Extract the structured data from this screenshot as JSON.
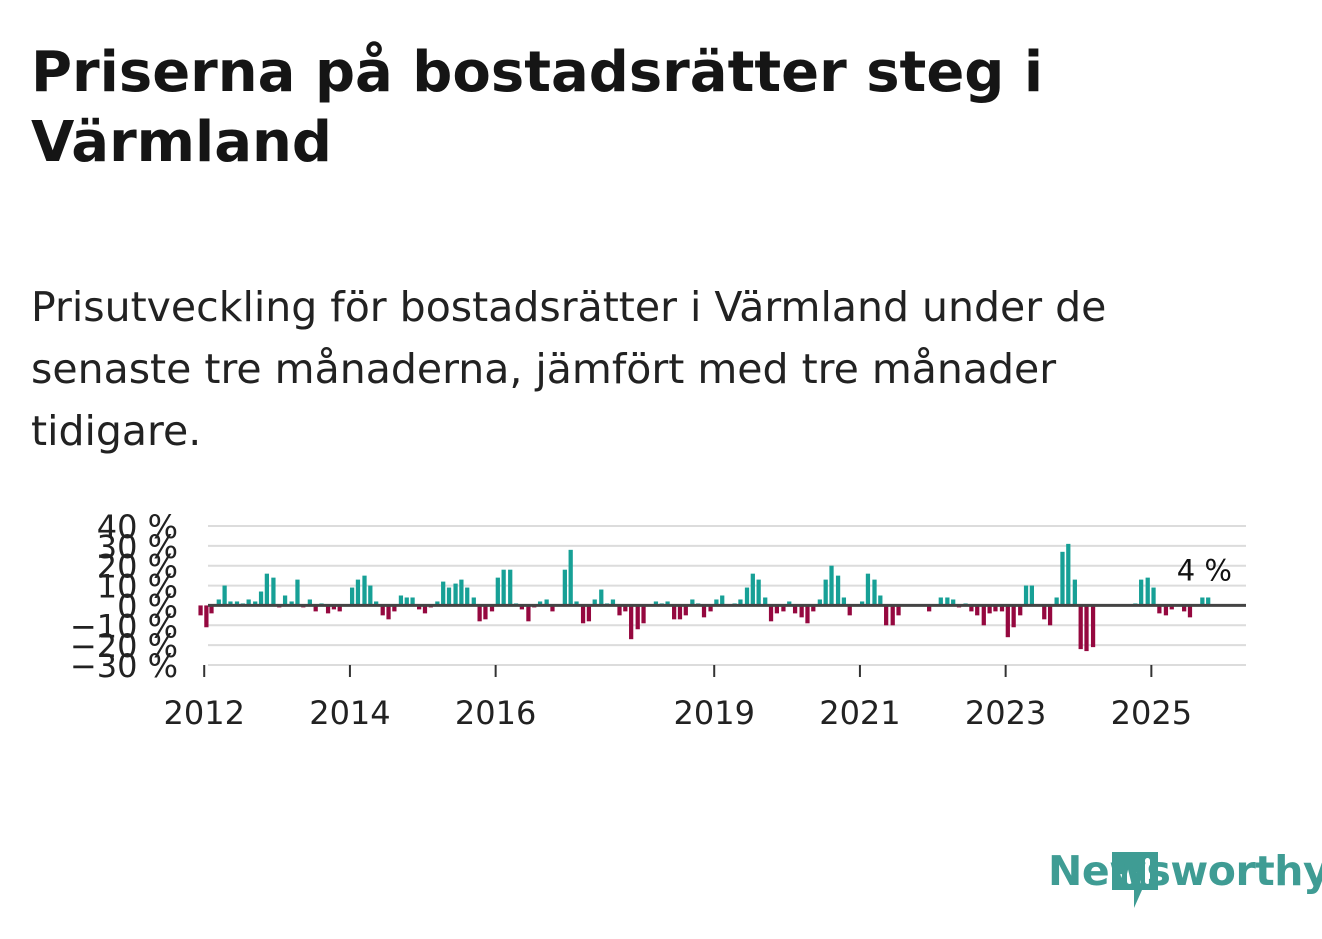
{
  "title": "Priserna på bostadsrätter steg i Värmland",
  "subtitle": "Prisutveckling för bostadsrätter i Värmland under de senaste tre månaderna, jämfört med tre månader tidigare.",
  "brand": {
    "name": "Newsworthy",
    "color": "#3f9c94"
  },
  "colors": {
    "positive": "#17a096",
    "negative": "#95083f",
    "grid": "#dcdcdc",
    "zero": "#444444"
  },
  "chart_data": {
    "type": "bar",
    "ylim": [
      -30,
      40
    ],
    "y_ticks": [
      40,
      30,
      20,
      10,
      0,
      -10,
      -20,
      -30
    ],
    "y_tick_labels": [
      "40 %",
      "30 %",
      "20 %",
      "10 %",
      "0 %",
      "−10 %",
      "−20 %",
      "−30 %"
    ],
    "x_start": 2011.75,
    "x_end": 2025.75,
    "x_ticks": [
      2012,
      2014,
      2016,
      2019,
      2021,
      2023,
      2025
    ],
    "x_tick_labels": [
      "2012",
      "2014",
      "2016",
      "2019",
      "2021",
      "2023",
      "2025"
    ],
    "bar_width_months": 0.7,
    "annotation": {
      "text": "4 %",
      "x": 2025.7
    },
    "bars": [
      {
        "x": 2011.95,
        "value": -5
      },
      {
        "x": 2012.03,
        "value": -11
      },
      {
        "x": 2012.1,
        "value": -4
      },
      {
        "x": 2012.2,
        "value": 3
      },
      {
        "x": 2012.28,
        "value": 10
      },
      {
        "x": 2012.36,
        "value": 2
      },
      {
        "x": 2012.45,
        "value": 2
      },
      {
        "x": 2012.53,
        "value": 1
      },
      {
        "x": 2012.61,
        "value": 3
      },
      {
        "x": 2012.7,
        "value": 2
      },
      {
        "x": 2012.78,
        "value": 7
      },
      {
        "x": 2012.86,
        "value": 16
      },
      {
        "x": 2012.95,
        "value": 14
      },
      {
        "x": 2013.03,
        "value": -1
      },
      {
        "x": 2013.11,
        "value": 5
      },
      {
        "x": 2013.2,
        "value": 2
      },
      {
        "x": 2013.28,
        "value": 13
      },
      {
        "x": 2013.36,
        "value": -1
      },
      {
        "x": 2013.45,
        "value": 3
      },
      {
        "x": 2013.53,
        "value": -3
      },
      {
        "x": 2013.61,
        "value": 1
      },
      {
        "x": 2013.7,
        "value": -4
      },
      {
        "x": 2013.78,
        "value": -2
      },
      {
        "x": 2013.86,
        "value": -3
      },
      {
        "x": 2014.03,
        "value": 9
      },
      {
        "x": 2014.11,
        "value": 13
      },
      {
        "x": 2014.2,
        "value": 15
      },
      {
        "x": 2014.28,
        "value": 10
      },
      {
        "x": 2014.36,
        "value": 2
      },
      {
        "x": 2014.45,
        "value": -5
      },
      {
        "x": 2014.53,
        "value": -7
      },
      {
        "x": 2014.61,
        "value": -3
      },
      {
        "x": 2014.7,
        "value": 5
      },
      {
        "x": 2014.78,
        "value": 4
      },
      {
        "x": 2014.86,
        "value": 4
      },
      {
        "x": 2014.95,
        "value": -2
      },
      {
        "x": 2015.03,
        "value": -4
      },
      {
        "x": 2015.11,
        "value": -1
      },
      {
        "x": 2015.2,
        "value": 2
      },
      {
        "x": 2015.28,
        "value": 12
      },
      {
        "x": 2015.36,
        "value": 9
      },
      {
        "x": 2015.45,
        "value": 11
      },
      {
        "x": 2015.53,
        "value": 13
      },
      {
        "x": 2015.61,
        "value": 9
      },
      {
        "x": 2015.7,
        "value": 4
      },
      {
        "x": 2015.78,
        "value": -8
      },
      {
        "x": 2015.86,
        "value": -7
      },
      {
        "x": 2015.95,
        "value": -3
      },
      {
        "x": 2016.03,
        "value": 14
      },
      {
        "x": 2016.11,
        "value": 18
      },
      {
        "x": 2016.2,
        "value": 18
      },
      {
        "x": 2016.28,
        "value": 1
      },
      {
        "x": 2016.36,
        "value": -2
      },
      {
        "x": 2016.45,
        "value": -8
      },
      {
        "x": 2016.53,
        "value": -1
      },
      {
        "x": 2016.61,
        "value": 2
      },
      {
        "x": 2016.7,
        "value": 3
      },
      {
        "x": 2016.78,
        "value": -3
      },
      {
        "x": 2016.95,
        "value": 18
      },
      {
        "x": 2017.03,
        "value": 28
      },
      {
        "x": 2017.11,
        "value": 2
      },
      {
        "x": 2017.2,
        "value": -9
      },
      {
        "x": 2017.28,
        "value": -8
      },
      {
        "x": 2017.36,
        "value": 3
      },
      {
        "x": 2017.45,
        "value": 8
      },
      {
        "x": 2017.53,
        "value": 1
      },
      {
        "x": 2017.61,
        "value": 3
      },
      {
        "x": 2017.7,
        "value": -5
      },
      {
        "x": 2017.78,
        "value": -3
      },
      {
        "x": 2017.86,
        "value": -17
      },
      {
        "x": 2017.95,
        "value": -12
      },
      {
        "x": 2018.03,
        "value": -9
      },
      {
        "x": 2018.11,
        "value": 0
      },
      {
        "x": 2018.2,
        "value": 2
      },
      {
        "x": 2018.28,
        "value": 1
      },
      {
        "x": 2018.36,
        "value": 2
      },
      {
        "x": 2018.45,
        "value": -7
      },
      {
        "x": 2018.53,
        "value": -7
      },
      {
        "x": 2018.61,
        "value": -5
      },
      {
        "x": 2018.7,
        "value": 3
      },
      {
        "x": 2018.78,
        "value": 1
      },
      {
        "x": 2018.86,
        "value": -6
      },
      {
        "x": 2018.95,
        "value": -3
      },
      {
        "x": 2019.03,
        "value": 3
      },
      {
        "x": 2019.11,
        "value": 5
      },
      {
        "x": 2019.2,
        "value": 0
      },
      {
        "x": 2019.28,
        "value": 1
      },
      {
        "x": 2019.36,
        "value": 3
      },
      {
        "x": 2019.45,
        "value": 9
      },
      {
        "x": 2019.53,
        "value": 16
      },
      {
        "x": 2019.61,
        "value": 13
      },
      {
        "x": 2019.7,
        "value": 4
      },
      {
        "x": 2019.78,
        "value": -8
      },
      {
        "x": 2019.86,
        "value": -4
      },
      {
        "x": 2019.95,
        "value": -3
      },
      {
        "x": 2020.03,
        "value": 2
      },
      {
        "x": 2020.11,
        "value": -4
      },
      {
        "x": 2020.2,
        "value": -6
      },
      {
        "x": 2020.28,
        "value": -9
      },
      {
        "x": 2020.36,
        "value": -3
      },
      {
        "x": 2020.45,
        "value": 3
      },
      {
        "x": 2020.53,
        "value": 13
      },
      {
        "x": 2020.61,
        "value": 20
      },
      {
        "x": 2020.7,
        "value": 15
      },
      {
        "x": 2020.78,
        "value": 4
      },
      {
        "x": 2020.86,
        "value": -5
      },
      {
        "x": 2020.95,
        "value": 0
      },
      {
        "x": 2021.03,
        "value": 2
      },
      {
        "x": 2021.11,
        "value": 16
      },
      {
        "x": 2021.2,
        "value": 13
      },
      {
        "x": 2021.28,
        "value": 5
      },
      {
        "x": 2021.36,
        "value": -10
      },
      {
        "x": 2021.45,
        "value": -10
      },
      {
        "x": 2021.53,
        "value": -5
      },
      {
        "x": 2021.61,
        "value": 0
      },
      {
        "x": 2021.7,
        "value": 0
      },
      {
        "x": 2021.78,
        "value": 0
      },
      {
        "x": 2021.86,
        "value": 0
      },
      {
        "x": 2021.95,
        "value": -3
      },
      {
        "x": 2022.11,
        "value": 4
      },
      {
        "x": 2022.2,
        "value": 4
      },
      {
        "x": 2022.28,
        "value": 3
      },
      {
        "x": 2022.36,
        "value": -1
      },
      {
        "x": 2022.45,
        "value": 1
      },
      {
        "x": 2022.53,
        "value": -3
      },
      {
        "x": 2022.61,
        "value": -5
      },
      {
        "x": 2022.7,
        "value": -10
      },
      {
        "x": 2022.78,
        "value": -4
      },
      {
        "x": 2022.86,
        "value": -3
      },
      {
        "x": 2022.95,
        "value": -3
      },
      {
        "x": 2023.03,
        "value": -16
      },
      {
        "x": 2023.11,
        "value": -11
      },
      {
        "x": 2023.2,
        "value": -5
      },
      {
        "x": 2023.28,
        "value": 10
      },
      {
        "x": 2023.36,
        "value": 10
      },
      {
        "x": 2023.45,
        "value": 0
      },
      {
        "x": 2023.53,
        "value": -7
      },
      {
        "x": 2023.61,
        "value": -10
      },
      {
        "x": 2023.7,
        "value": 4
      },
      {
        "x": 2023.78,
        "value": 27
      },
      {
        "x": 2023.86,
        "value": 31
      },
      {
        "x": 2023.95,
        "value": 13
      },
      {
        "x": 2024.03,
        "value": -22
      },
      {
        "x": 2024.11,
        "value": -23
      },
      {
        "x": 2024.2,
        "value": -21
      },
      {
        "x": 2024.28,
        "value": 0
      },
      {
        "x": 2024.36,
        "value": 0
      },
      {
        "x": 2024.45,
        "value": 0
      },
      {
        "x": 2024.53,
        "value": 0
      },
      {
        "x": 2024.61,
        "value": 0
      },
      {
        "x": 2024.7,
        "value": 0
      },
      {
        "x": 2024.78,
        "value": 1
      },
      {
        "x": 2024.86,
        "value": 13
      },
      {
        "x": 2024.95,
        "value": 14
      },
      {
        "x": 2025.03,
        "value": 9
      },
      {
        "x": 2025.11,
        "value": -4
      },
      {
        "x": 2025.2,
        "value": -5
      },
      {
        "x": 2025.28,
        "value": -2
      },
      {
        "x": 2025.36,
        "value": 0
      },
      {
        "x": 2025.45,
        "value": -3
      },
      {
        "x": 2025.53,
        "value": -6
      },
      {
        "x": 2025.61,
        "value": 0
      },
      {
        "x": 2025.7,
        "value": 4
      },
      {
        "x": 2025.78,
        "value": 4
      }
    ]
  }
}
